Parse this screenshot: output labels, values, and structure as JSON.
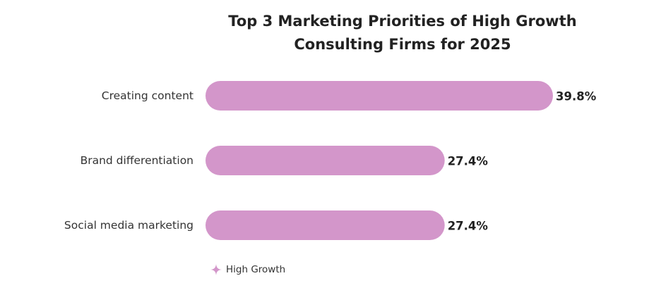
{
  "chart_data": {
    "type": "bar",
    "orientation": "horizontal",
    "title_lines": [
      "Top 3 Marketing Priorities of High Growth",
      "Consulting Firms for 2025"
    ],
    "categories": [
      "Creating content",
      "Brand differentiation",
      "Social media marketing"
    ],
    "series": [
      {
        "name": "High Growth",
        "values": [
          39.8,
          27.4,
          27.4
        ],
        "labels": [
          "39.8%",
          "27.4%",
          "27.4%"
        ],
        "color": "#d396ca"
      }
    ],
    "xlim": [
      0,
      39.8
    ],
    "grid": false,
    "legend_position": "bottom-left"
  }
}
